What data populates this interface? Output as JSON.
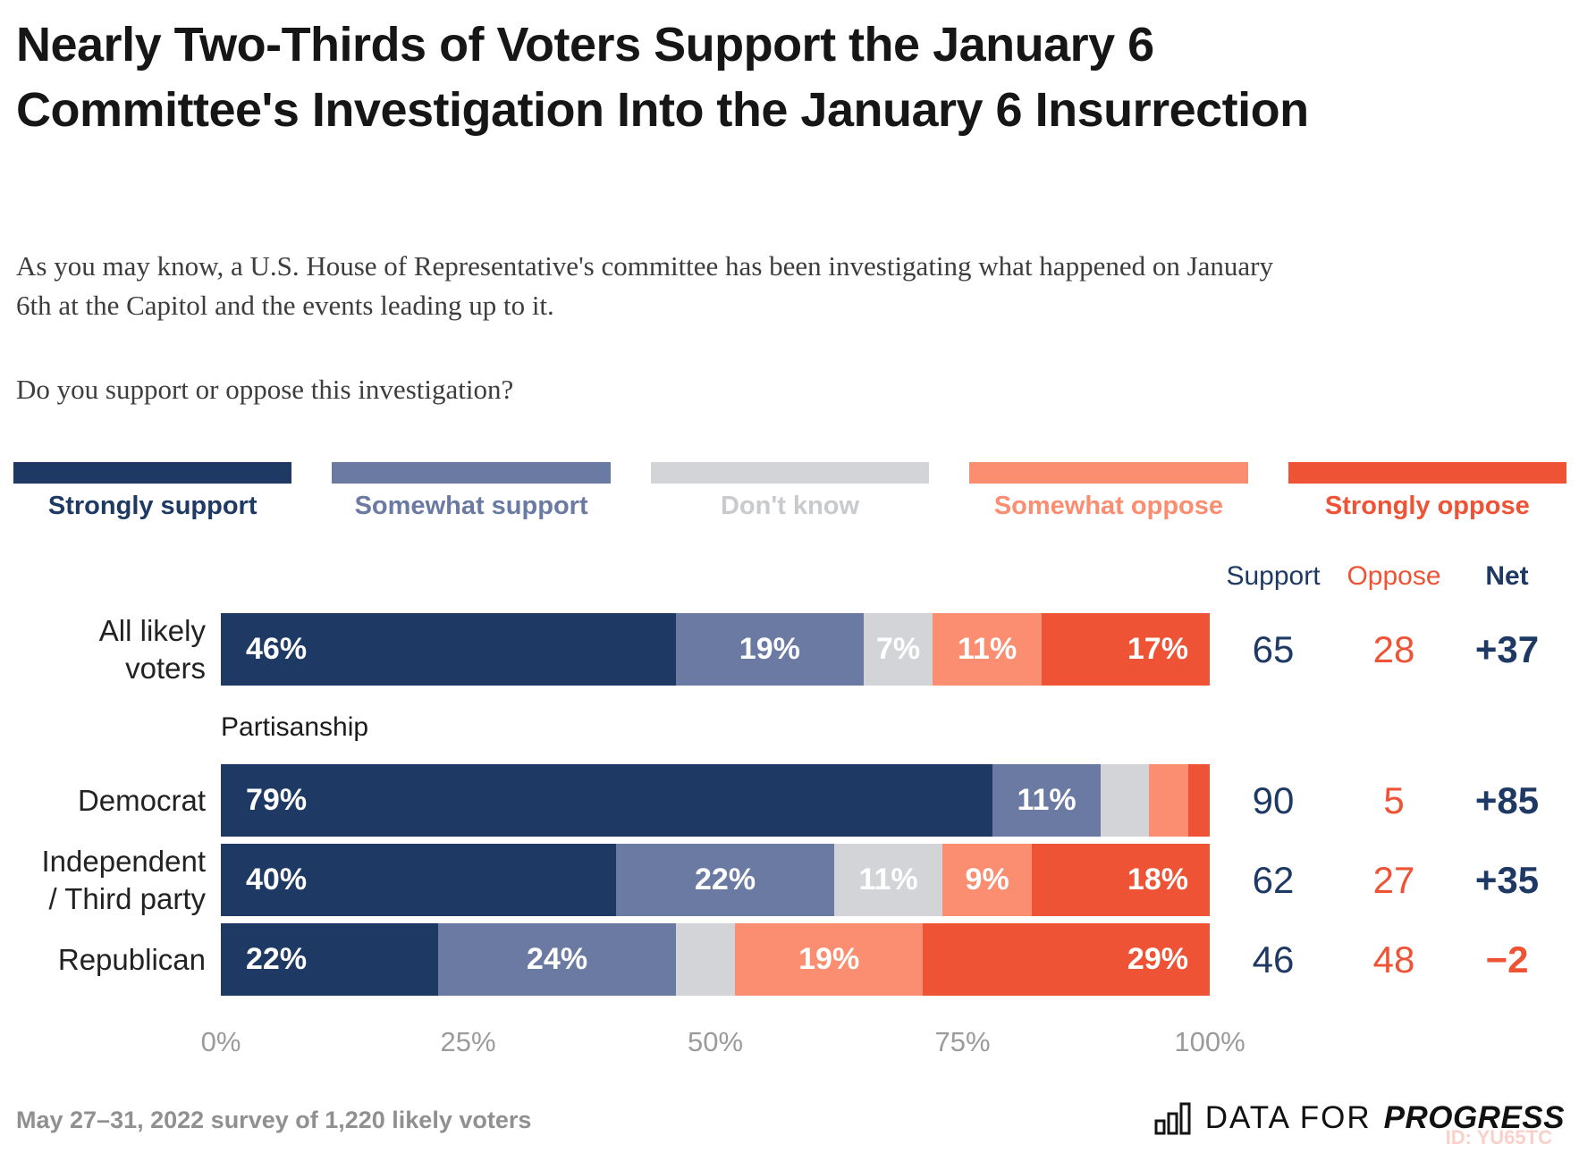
{
  "title": "Nearly Two-Thirds of Voters Support the January 6 Committee's Investigation Into the January 6 Insurrection",
  "subtitle": "As you may know, a U.S. House of Representative's committee has been investigating what happened on January 6th at the Capitol and the events leading up to it.",
  "question": "Do you support or oppose this investigation?",
  "colors": {
    "strongly_support": "#1e3a64",
    "somewhat_support": "#6b7aa2",
    "dont_know": "#d2d4d7",
    "somewhat_oppose": "#fb8d70",
    "strongly_oppose": "#ee5336",
    "dont_know_label": "#c8cacd",
    "axis_gray": "#9b9b9b"
  },
  "legend": [
    {
      "label": "Strongly support",
      "color": "#1e3a64",
      "label_color": "#1e3a64"
    },
    {
      "label": "Somewhat support",
      "color": "#6b7aa2",
      "label_color": "#6b7aa2"
    },
    {
      "label": "Don't know",
      "color": "#d2d4d7",
      "label_color": "#c8cacd"
    },
    {
      "label": "Somewhat oppose",
      "color": "#fb8d70",
      "label_color": "#fb8d70"
    },
    {
      "label": "Strongly oppose",
      "color": "#ee5336",
      "label_color": "#ee5336"
    }
  ],
  "stats_headers": {
    "support": "Support",
    "oppose": "Oppose",
    "net": "Net"
  },
  "section_label": "Partisanship",
  "chart_data": {
    "type": "bar",
    "orientation": "horizontal-stacked",
    "xlim": [
      0,
      100
    ],
    "x_ticks": [
      "0%",
      "25%",
      "50%",
      "75%",
      "100%"
    ],
    "legend_position": "top",
    "grid": false,
    "label_threshold": 7,
    "categories": [
      "All likely voters",
      "Democrat",
      "Independent / Third party",
      "Republican"
    ],
    "series": [
      {
        "name": "Strongly support",
        "color": "#1e3a64",
        "values": [
          46,
          79,
          40,
          22
        ]
      },
      {
        "name": "Somewhat support",
        "color": "#6b7aa2",
        "values": [
          19,
          11,
          22,
          24
        ]
      },
      {
        "name": "Don't know",
        "color": "#d2d4d7",
        "values": [
          7,
          5,
          11,
          6
        ]
      },
      {
        "name": "Somewhat oppose",
        "color": "#fb8d70",
        "values": [
          11,
          4,
          9,
          19
        ]
      },
      {
        "name": "Strongly oppose",
        "color": "#ee5336",
        "values": [
          17,
          1,
          18,
          29
        ]
      }
    ],
    "rows": [
      {
        "label_lines": [
          "All likely",
          "voters"
        ],
        "support": "65",
        "oppose": "28",
        "net": "+37",
        "net_negative": false
      },
      {
        "label_lines": [
          "Democrat"
        ],
        "support": "90",
        "oppose": "5",
        "net": "+85",
        "net_negative": false
      },
      {
        "label_lines": [
          "Independent",
          "/ Third party"
        ],
        "support": "62",
        "oppose": "27",
        "net": "+35",
        "net_negative": false
      },
      {
        "label_lines": [
          "Republican"
        ],
        "support": "46",
        "oppose": "48",
        "net": "−2",
        "net_negative": true
      }
    ]
  },
  "footer": {
    "note": "May 27–31, 2022 survey of 1,220 likely voters",
    "brand_prefix": "DATA FOR",
    "brand_suffix": "PROGRESS",
    "watermark": "ID: YU65TC"
  }
}
